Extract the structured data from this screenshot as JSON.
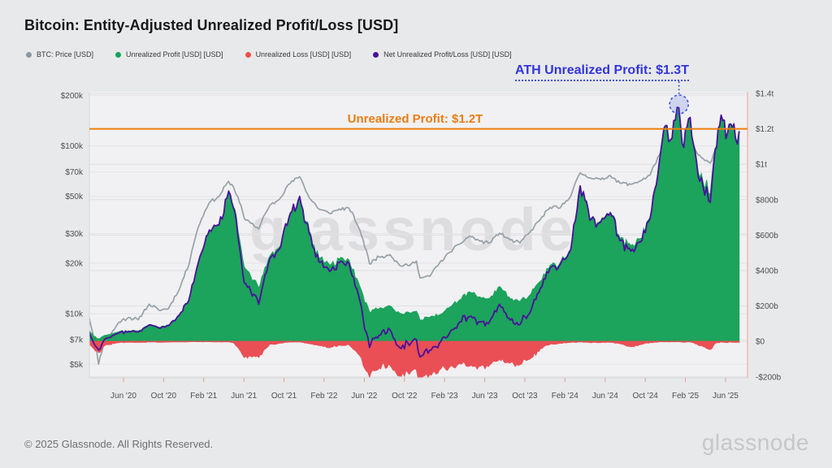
{
  "header": {
    "title": "Bitcoin: Entity-Adjusted Unrealized Profit/Loss [USD]"
  },
  "legend": {
    "items": [
      {
        "label": "BTC: Price [USD]",
        "color": "#8b9aa2"
      },
      {
        "label": "Unrealized Profit [USD] [USD]",
        "color": "#12a45c"
      },
      {
        "label": "Unrealized Loss [USD] [USD]",
        "color": "#ef5048"
      },
      {
        "label": "Net Unrealized Profit/Loss [USD] [USD]",
        "color": "#49109c"
      }
    ]
  },
  "annotations": {
    "hline": {
      "label": "Unrealized Profit: $1.2T",
      "value_busd": 1200,
      "color": "#ee7f0d"
    },
    "ath": {
      "label": "ATH Unrealized Profit: $1.3T",
      "value_busd": 1300,
      "t": 2025.03,
      "color": "#3234dd"
    }
  },
  "watermark": "glassnode",
  "axes": {
    "left_ticks": [
      {
        "label": "$200k",
        "k": 200
      },
      {
        "label": "$100k",
        "k": 100
      },
      {
        "label": "$70k",
        "k": 70
      },
      {
        "label": "$50k",
        "k": 50
      },
      {
        "label": "$30k",
        "k": 30
      },
      {
        "label": "$20k",
        "k": 20
      },
      {
        "label": "$10k",
        "k": 10
      },
      {
        "label": "$7k",
        "k": 7
      },
      {
        "label": "$5k",
        "k": 5
      }
    ],
    "right_ticks": [
      {
        "label": "$1.4t",
        "b": 1400
      },
      {
        "label": "$1.2t",
        "b": 1200
      },
      {
        "label": "$1t",
        "b": 1000
      },
      {
        "label": "$800b",
        "b": 800
      },
      {
        "label": "$600b",
        "b": 600
      },
      {
        "label": "$400b",
        "b": 400
      },
      {
        "label": "$200b",
        "b": 200
      },
      {
        "label": "$0",
        "b": 0
      },
      {
        "label": "-$200b",
        "b": -200
      }
    ],
    "x_ticks": [
      {
        "label": "Jun '20",
        "t": 2020.417
      },
      {
        "label": "Oct '20",
        "t": 2020.75
      },
      {
        "label": "Feb '21",
        "t": 2021.083
      },
      {
        "label": "Jun '21",
        "t": 2021.417
      },
      {
        "label": "Oct '21",
        "t": 2021.75
      },
      {
        "label": "Feb '22",
        "t": 2022.083
      },
      {
        "label": "Jun '22",
        "t": 2022.417
      },
      {
        "label": "Oct '22",
        "t": 2022.75
      },
      {
        "label": "Feb '23",
        "t": 2023.083
      },
      {
        "label": "Jun '23",
        "t": 2023.417
      },
      {
        "label": "Oct '23",
        "t": 2023.75
      },
      {
        "label": "Feb '24",
        "t": 2024.083
      },
      {
        "label": "Jun '24",
        "t": 2024.417
      },
      {
        "label": "Oct '24",
        "t": 2024.75
      },
      {
        "label": "Feb '25",
        "t": 2025.083
      },
      {
        "label": "Jun '25",
        "t": 2025.417
      }
    ]
  },
  "chart_data": {
    "type": "area",
    "x_years": [
      2020.13,
      2020.17,
      2020.21,
      2020.25,
      2020.29,
      2020.38,
      2020.46,
      2020.54,
      2020.63,
      2020.71,
      2020.79,
      2020.88,
      2020.96,
      2021.04,
      2021.13,
      2021.21,
      2021.29,
      2021.33,
      2021.38,
      2021.42,
      2021.46,
      2021.54,
      2021.63,
      2021.71,
      2021.79,
      2021.88,
      2021.96,
      2022.04,
      2022.13,
      2022.21,
      2022.29,
      2022.38,
      2022.46,
      2022.5,
      2022.54,
      2022.63,
      2022.71,
      2022.79,
      2022.85,
      2022.88,
      2022.96,
      2023.04,
      2023.13,
      2023.21,
      2023.29,
      2023.38,
      2023.46,
      2023.54,
      2023.63,
      2023.71,
      2023.79,
      2023.88,
      2023.96,
      2024.04,
      2024.13,
      2024.21,
      2024.25,
      2024.29,
      2024.38,
      2024.46,
      2024.54,
      2024.63,
      2024.71,
      2024.79,
      2024.88,
      2024.93,
      2024.96,
      2025.0,
      2025.03,
      2025.07,
      2025.11,
      2025.15,
      2025.19,
      2025.23,
      2025.29,
      2025.33,
      2025.38,
      2025.42,
      2025.46,
      2025.5,
      2025.53
    ],
    "series": [
      {
        "name": "BTC: Price [USD]",
        "style": "line",
        "axis": "left-log",
        "unit": "thousand USD",
        "color": "#96a1a8",
        "values": [
          9.6,
          7.2,
          5.0,
          6.5,
          7.1,
          8.9,
          9.5,
          9.2,
          11.4,
          10.5,
          10.7,
          13.9,
          19.5,
          33,
          46,
          50,
          61.5,
          57,
          46,
          37,
          35.5,
          32,
          44,
          48,
          59,
          65.5,
          49,
          42,
          39.5,
          42,
          42.5,
          31.5,
          19.8,
          21,
          21.8,
          22.5,
          19.4,
          19.3,
          20.6,
          16.3,
          16.7,
          20,
          23.3,
          26,
          29,
          27,
          26.5,
          30.2,
          27.5,
          26.4,
          30.5,
          36.5,
          43,
          42.5,
          50,
          69,
          67,
          64.5,
          63,
          66.5,
          60,
          59,
          62,
          67,
          92,
          101,
          97,
          102,
          106.5,
          95,
          102,
          97,
          88,
          84,
          79,
          94,
          109,
          103,
          106,
          102,
          104
        ]
      },
      {
        "name": "Unrealized Profit [USD]",
        "style": "area",
        "axis": "right-linear",
        "unit": "billion USD",
        "color": "#1ca35c",
        "values": [
          65,
          30,
          14,
          30,
          38,
          55,
          60,
          58,
          95,
          80,
          92,
          150,
          235,
          450,
          630,
          660,
          850,
          760,
          580,
          420,
          390,
          300,
          480,
          530,
          700,
          820,
          620,
          470,
          430,
          465,
          460,
          310,
          165,
          180,
          185,
          200,
          160,
          162,
          170,
          120,
          135,
          150,
          195,
          235,
          280,
          250,
          245,
          310,
          240,
          225,
          260,
          340,
          430,
          440,
          520,
          880,
          800,
          690,
          680,
          730,
          580,
          540,
          580,
          700,
          1080,
          1220,
          1140,
          1250,
          1320,
          1100,
          1260,
          1120,
          950,
          900,
          830,
          1090,
          1280,
          1150,
          1230,
          1150,
          1190
        ]
      },
      {
        "name": "Unrealized Loss [USD]",
        "style": "area",
        "axis": "right-linear",
        "unit": "billion USD",
        "color": "#e94f55",
        "values": [
          -8,
          -40,
          -62,
          -28,
          -18,
          -6,
          -4,
          -5,
          -2,
          -4,
          -3,
          -2,
          -1,
          -1,
          -1,
          -2,
          -2,
          -6,
          -45,
          -90,
          -80,
          -90,
          -15,
          -10,
          -3,
          -2,
          -12,
          -22,
          -35,
          -20,
          -18,
          -80,
          -200,
          -165,
          -150,
          -135,
          -195,
          -185,
          -160,
          -215,
          -185,
          -160,
          -140,
          -125,
          -140,
          -140,
          -130,
          -100,
          -120,
          -130,
          -100,
          -40,
          -15,
          -10,
          -5,
          -2,
          -3,
          -6,
          -6,
          -4,
          -12,
          -30,
          -18,
          -6,
          -1,
          -1,
          -2,
          -1,
          -1,
          -4,
          -2,
          -6,
          -20,
          -28,
          -45,
          -10,
          -2,
          -6,
          -3,
          -5,
          -4
        ]
      },
      {
        "name": "Net Unrealized Profit/Loss [USD]",
        "style": "line",
        "axis": "right-linear",
        "unit": "billion USD",
        "color": "#49109c",
        "values": [
          57,
          -10,
          -48,
          2,
          20,
          49,
          56,
          53,
          93,
          76,
          89,
          148,
          234,
          449,
          629,
          658,
          848,
          754,
          535,
          330,
          310,
          210,
          465,
          520,
          697,
          818,
          608,
          448,
          395,
          445,
          442,
          230,
          -35,
          15,
          35,
          65,
          -35,
          -23,
          10,
          -95,
          -50,
          -10,
          55,
          110,
          140,
          110,
          115,
          210,
          120,
          95,
          160,
          300,
          415,
          430,
          515,
          878,
          797,
          684,
          674,
          726,
          568,
          510,
          562,
          694,
          1079,
          1219,
          1138,
          1249,
          1319,
          1096,
          1258,
          1114,
          930,
          872,
          785,
          1080,
          1278,
          1144,
          1227,
          1145,
          1186
        ]
      }
    ],
    "title": "Bitcoin: Entity-Adjusted Unrealized Profit/Loss [USD]",
    "left_axis": {
      "scale": "log",
      "unit": "USD",
      "ticks_k": [
        200,
        100,
        70,
        50,
        30,
        20,
        10,
        7,
        5
      ]
    },
    "right_axis": {
      "scale": "linear",
      "unit": "USD",
      "range_busd": [
        -230,
        1430
      ]
    },
    "grid": true,
    "legend_position": "top-left"
  },
  "footer": {
    "copyright": "© 2025 Glassnode. All Rights Reserved.",
    "logo": "glassnode"
  }
}
